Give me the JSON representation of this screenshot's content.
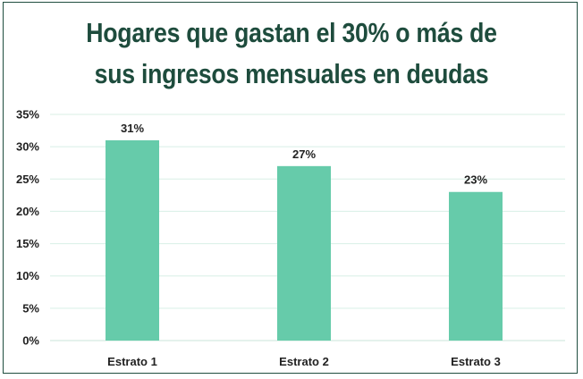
{
  "chart_data": {
    "type": "bar",
    "title_lines": [
      "Hogares que gastan el 30% o más de",
      "sus ingresos mensuales en deudas"
    ],
    "categories": [
      "Estrato 1",
      "Estrato 2",
      "Estrato 3"
    ],
    "values": [
      31,
      27,
      23
    ],
    "data_labels": [
      "31%",
      "27%",
      "23%"
    ],
    "yticks": [
      "0%",
      "5%",
      "10%",
      "15%",
      "20%",
      "25%",
      "30%",
      "35%"
    ],
    "ylim": [
      0,
      35
    ],
    "grid": true,
    "legend": "none",
    "bar_color": "#66cbaa",
    "title_color": "#1e4c3d",
    "grid_color": "#d8efe6"
  }
}
